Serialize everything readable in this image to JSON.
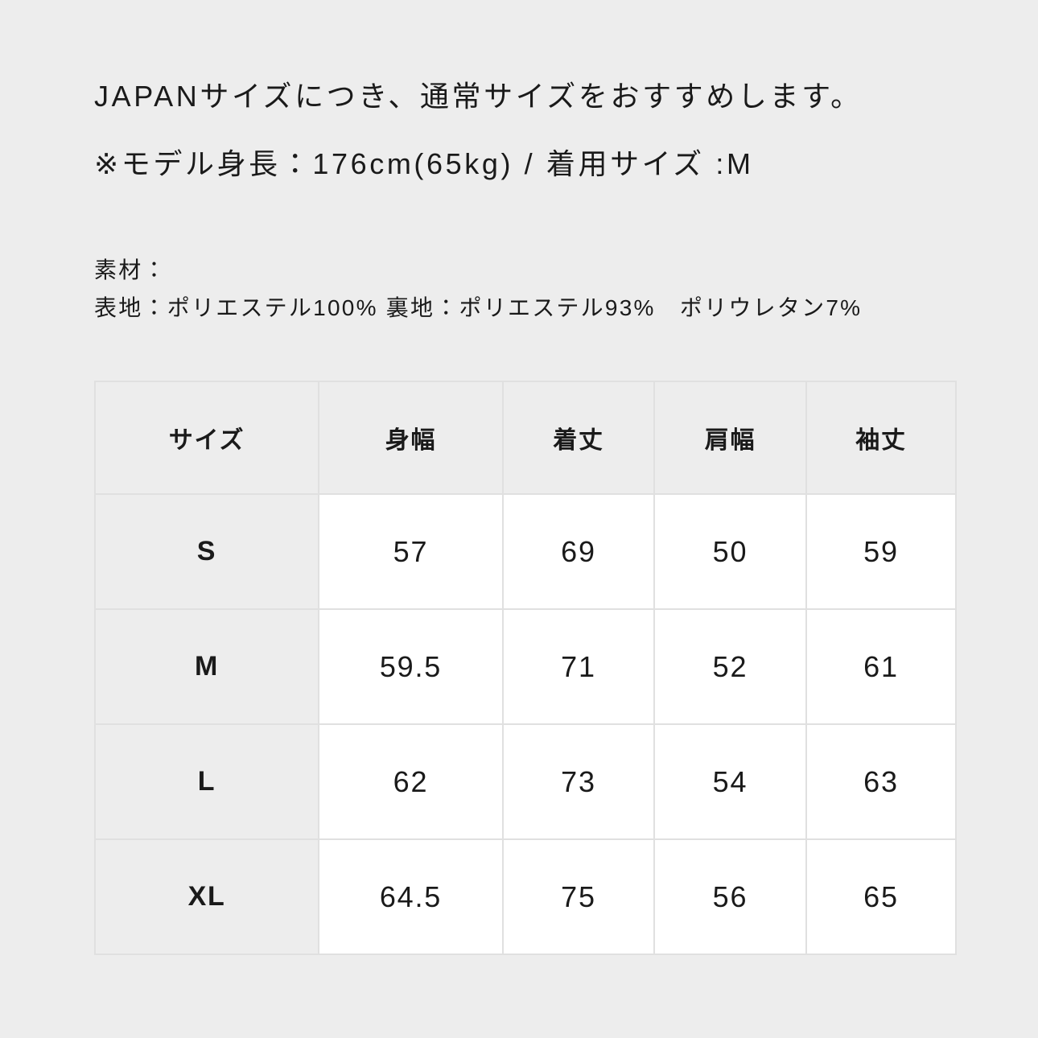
{
  "page": {
    "notes": {
      "line1": "JAPANサイズにつき、通常サイズをおすすめします。",
      "line2": "※モデル身長：176cm(65kg) / 着用サイズ :M"
    },
    "material": {
      "label": "素材：",
      "composition": "表地：ポリエステル100% 裏地：ポリエステル93%　ポリウレタン7%"
    }
  },
  "size_table": {
    "columns": [
      "サイズ",
      "身幅",
      "着丈",
      "肩幅",
      "袖丈"
    ],
    "rows": [
      {
        "label": "S",
        "values": [
          "57",
          "69",
          "50",
          "59"
        ]
      },
      {
        "label": "M",
        "values": [
          "59.5",
          "71",
          "52",
          "61"
        ]
      },
      {
        "label": "L",
        "values": [
          "62",
          "73",
          "54",
          "63"
        ]
      },
      {
        "label": "XL",
        "values": [
          "64.5",
          "75",
          "56",
          "65"
        ]
      }
    ]
  },
  "colors": {
    "background": "#ededed",
    "table_cell_background": "#ffffff",
    "table_border": "#e0e0e0",
    "text": "#1a1a1a"
  }
}
